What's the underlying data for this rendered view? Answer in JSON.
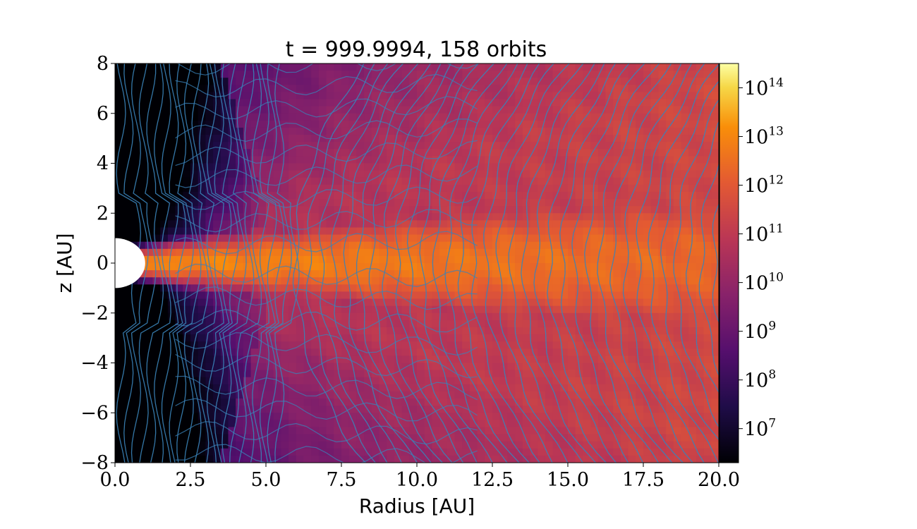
{
  "chart_data": {
    "type": "heatmap",
    "title": "t = 999.9994, 158 orbits",
    "xlabel": "Radius [AU]",
    "ylabel": "z [AU]",
    "xlim": [
      0,
      20
    ],
    "ylim": [
      -8,
      8
    ],
    "x_ticks": [
      {
        "value": 0,
        "label": "0.0"
      },
      {
        "value": 2.5,
        "label": "2.5"
      },
      {
        "value": 5,
        "label": "5.0"
      },
      {
        "value": 7.5,
        "label": "7.5"
      },
      {
        "value": 10,
        "label": "10.0"
      },
      {
        "value": 12.5,
        "label": "12.5"
      },
      {
        "value": 15,
        "label": "15.0"
      },
      {
        "value": 17.5,
        "label": "17.5"
      },
      {
        "value": 20,
        "label": "20.0"
      }
    ],
    "y_ticks": [
      {
        "value": 8,
        "label": "8"
      },
      {
        "value": 6,
        "label": "6"
      },
      {
        "value": 4,
        "label": "4"
      },
      {
        "value": 2,
        "label": "2"
      },
      {
        "value": 0,
        "label": "0"
      },
      {
        "value": -2,
        "label": "−2"
      },
      {
        "value": -4,
        "label": "−4"
      },
      {
        "value": -6,
        "label": "−6"
      },
      {
        "value": -8,
        "label": "−8"
      }
    ],
    "colorbar": {
      "scale": "log",
      "colormap": "inferno",
      "range_exponent": [
        6.3,
        14.5
      ],
      "ticks": [
        {
          "exponent": 7,
          "base": "10",
          "sup": "7"
        },
        {
          "exponent": 8,
          "base": "10",
          "sup": "8"
        },
        {
          "exponent": 9,
          "base": "10",
          "sup": "9"
        },
        {
          "exponent": 10,
          "base": "10",
          "sup": "10"
        },
        {
          "exponent": 11,
          "base": "10",
          "sup": "11"
        },
        {
          "exponent": 12,
          "base": "10",
          "sup": "12"
        },
        {
          "exponent": 13,
          "base": "10",
          "sup": "13"
        },
        {
          "exponent": 14,
          "base": "10",
          "sup": "14"
        }
      ]
    },
    "inner_boundary_radius": 1.0,
    "streamline_color": "#3a83b8",
    "grid": false
  }
}
